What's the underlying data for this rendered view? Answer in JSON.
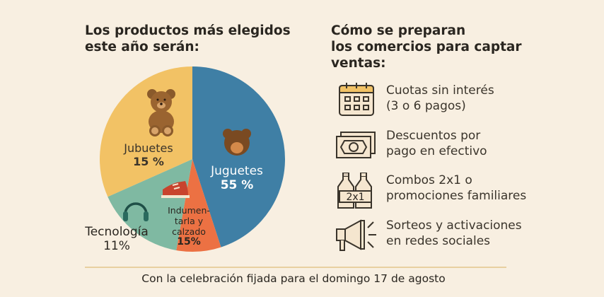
{
  "left_title": [
    "Los productos más elegidos",
    "este año serán:"
  ],
  "right_title": [
    "Cómo se preparan",
    "los comercios para captar",
    "ventas:"
  ],
  "chart_data": {
    "type": "pie",
    "slices": [
      {
        "label": "Juguetes",
        "value": 55,
        "value_label": "55 %",
        "color": "#3f7fa5",
        "icon": "bear-face-icon"
      },
      {
        "label_lines": [
          "Indumen-",
          "tarla y",
          "calzado"
        ],
        "value": 15,
        "value_label": "15%",
        "color": "#ec7143",
        "icon": "sneaker-icon"
      },
      {
        "label": "Tecnología",
        "value": 11,
        "value_label": "11%",
        "color": "#7fb9a2",
        "icon": "headphones-icon"
      },
      {
        "label": "Jubuetes",
        "value": 15,
        "value_label": "15 %",
        "color": "#f2c265",
        "icon": "teddy-bear-icon"
      }
    ]
  },
  "strategies": [
    {
      "icon": "calendar-icon",
      "lines": [
        "Cuotas sin interés",
        "(3 o 6 pagos)"
      ]
    },
    {
      "icon": "cash-icon",
      "lines": [
        "Descuentos por",
        "pago en efectivo"
      ]
    },
    {
      "icon": "bottles-2x1-icon",
      "icon_text": "2x1",
      "lines": [
        "Combos 2x1 o",
        "promociones familiares"
      ]
    },
    {
      "icon": "megaphone-icon",
      "lines": [
        "Sorteos y activaciones",
        "en redes sociales"
      ]
    }
  ],
  "footer": "Con la celebración fijada para el domingo 17 de agosto"
}
